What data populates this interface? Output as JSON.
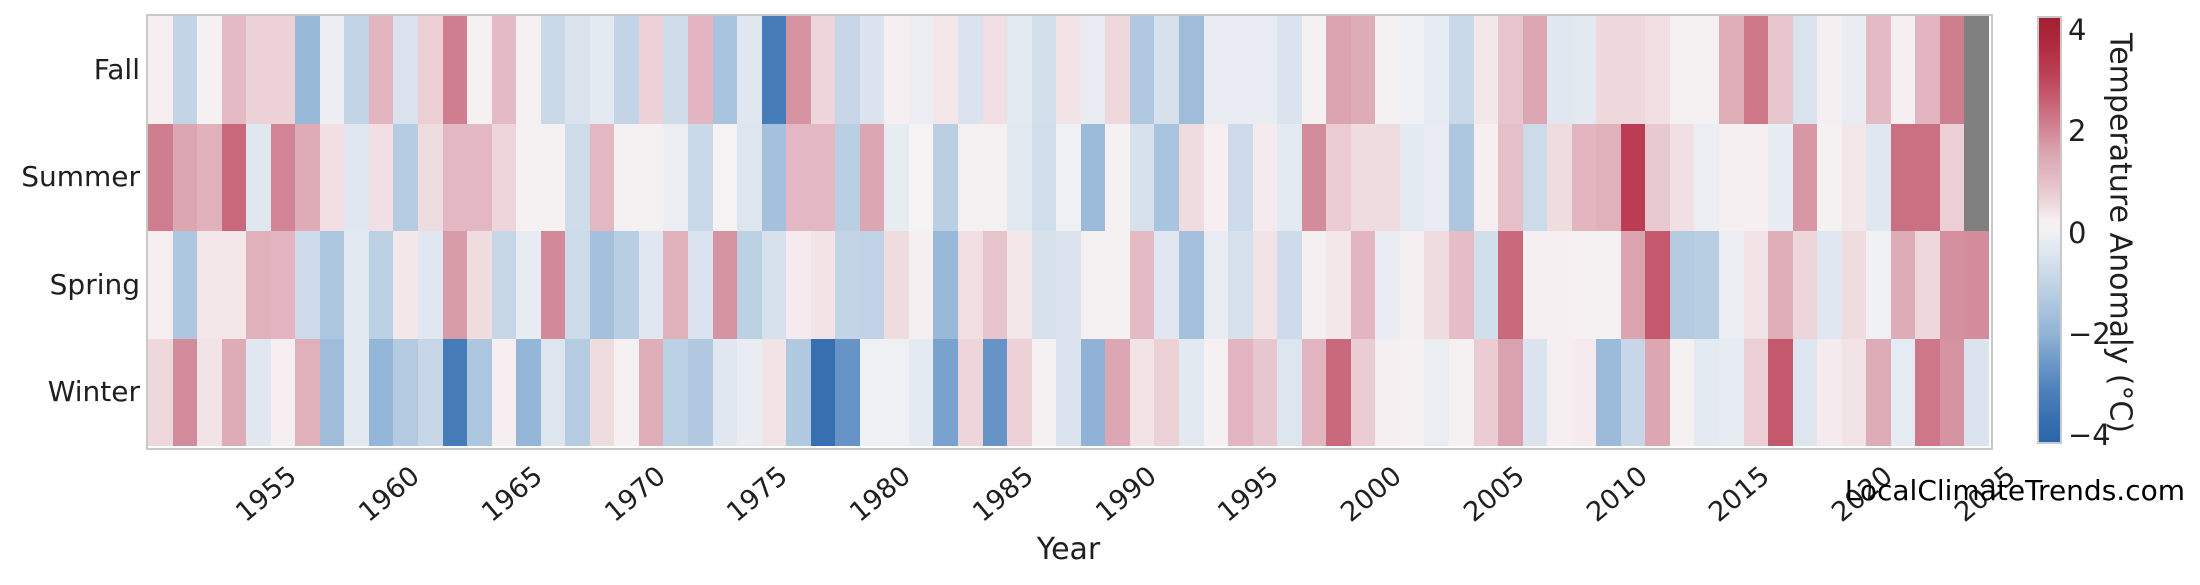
{
  "watermark": "LocalClimateTrends.com",
  "chart_data": {
    "type": "heatmap",
    "title": "",
    "xlabel": "Year",
    "ylabel": "",
    "colorbar_label": "Temperature Anomaly (°C)",
    "colorbar_ticks": [
      {
        "value": 4,
        "label": "4"
      },
      {
        "value": 2,
        "label": "2"
      },
      {
        "value": 0,
        "label": "0"
      },
      {
        "value": -2,
        "label": "−2"
      },
      {
        "value": -4,
        "label": "−4"
      }
    ],
    "vmin": -4,
    "vmax": 4,
    "year_start": 1951,
    "year_end": 2025,
    "x_ticks": [
      "1955",
      "1960",
      "1965",
      "1970",
      "1975",
      "1980",
      "1985",
      "1990",
      "1995",
      "2000",
      "2005",
      "2010",
      "2015",
      "2020",
      "2025"
    ],
    "rows": [
      "Fall",
      "Summer",
      "Spring",
      "Winter"
    ],
    "missing_color": "#808080",
    "grid": false,
    "colormap_stops": [
      [
        -4.0,
        "#2a65ab"
      ],
      [
        -3.5,
        "#3a72b1"
      ],
      [
        -3.0,
        "#4e82bc"
      ],
      [
        -2.5,
        "#6c98c9"
      ],
      [
        -2.0,
        "#8fb2d6"
      ],
      [
        -1.5,
        "#a9c4de"
      ],
      [
        -1.0,
        "#c2d4e6"
      ],
      [
        -0.5,
        "#dbe4ee"
      ],
      [
        -0.2,
        "#e9edf3"
      ],
      [
        0.0,
        "#f4f2f3"
      ],
      [
        0.2,
        "#f6eef0"
      ],
      [
        0.5,
        "#eed8dc"
      ],
      [
        1.0,
        "#e4bac4"
      ],
      [
        1.5,
        "#daa2ae"
      ],
      [
        2.0,
        "#cf7e8f"
      ],
      [
        2.5,
        "#c55b70"
      ],
      [
        3.0,
        "#bb3d53"
      ],
      [
        3.5,
        "#b02a40"
      ],
      [
        4.0,
        "#a21f30"
      ]
    ],
    "series": [
      {
        "name": "Fall",
        "values": [
          0.2,
          -1.0,
          0.05,
          1.0,
          0.6,
          0.6,
          -1.8,
          -0.15,
          -1.0,
          1.1,
          -0.55,
          0.65,
          2.0,
          0.08,
          1.0,
          0.05,
          -0.85,
          -0.5,
          -0.3,
          -1.0,
          0.6,
          -0.75,
          1.1,
          -1.5,
          -0.4,
          -3.2,
          1.7,
          0.55,
          -0.9,
          -0.5,
          0.15,
          -0.15,
          0.3,
          -0.5,
          0.4,
          -0.3,
          -0.65,
          0.35,
          -0.2,
          0.5,
          -1.35,
          -0.6,
          -1.7,
          -0.2,
          -0.2,
          -0.2,
          -0.5,
          0.1,
          1.45,
          1.3,
          0.05,
          -0.1,
          -0.25,
          -0.85,
          0.3,
          0.8,
          1.4,
          -0.4,
          -0.35,
          0.5,
          0.5,
          0.4,
          0.05,
          0.05,
          1.25,
          2.1,
          0.8,
          -0.55,
          0.15,
          -0.2,
          1.0,
          0.15,
          1.1,
          2.0,
          null
        ]
      },
      {
        "name": "Summer",
        "values": [
          2.0,
          1.4,
          1.2,
          2.3,
          -0.4,
          1.9,
          1.3,
          0.4,
          -0.4,
          0.4,
          -1.25,
          0.45,
          1.05,
          1.05,
          0.55,
          0.05,
          0.05,
          -0.75,
          1.05,
          0.05,
          0.05,
          -0.15,
          -0.85,
          0.0,
          -0.45,
          -1.6,
          1.05,
          1.05,
          -1.15,
          1.4,
          -0.25,
          0.0,
          -1.15,
          0.1,
          0.1,
          -0.35,
          -0.7,
          -0.1,
          -1.75,
          0.1,
          -0.6,
          -1.5,
          0.45,
          0.2,
          -0.8,
          0.25,
          -0.3,
          1.8,
          0.7,
          0.45,
          0.45,
          -0.3,
          -0.2,
          -1.4,
          0.2,
          0.9,
          -0.8,
          0.45,
          1.1,
          1.2,
          3.0,
          0.75,
          0.4,
          -0.15,
          0.15,
          0.15,
          -0.25,
          1.65,
          0.05,
          0.3,
          -0.4,
          2.2,
          2.2,
          0.65,
          null
        ]
      },
      {
        "name": "Spring",
        "values": [
          0.2,
          -1.4,
          0.3,
          0.3,
          1.2,
          1.1,
          -0.8,
          -1.4,
          -0.35,
          -1.1,
          0.3,
          -0.4,
          1.6,
          0.45,
          -0.9,
          -0.25,
          1.85,
          -0.8,
          -1.6,
          -1.2,
          -0.4,
          1.2,
          -0.5,
          1.7,
          -1.1,
          -0.6,
          0.25,
          0.35,
          -1.0,
          -1.05,
          0.45,
          0.15,
          -1.8,
          0.4,
          0.85,
          0.3,
          -0.6,
          -0.5,
          0.05,
          0.05,
          1.0,
          -0.4,
          -1.6,
          -0.2,
          -0.6,
          0.35,
          -0.8,
          0.15,
          0.3,
          1.1,
          -0.2,
          0.15,
          0.45,
          0.95,
          -0.7,
          2.3,
          0.15,
          0.15,
          0.1,
          0.05,
          1.45,
          2.55,
          -1.3,
          -1.2,
          -0.15,
          0.35,
          1.25,
          0.55,
          -0.4,
          0.45,
          -0.1,
          1.3,
          0.5,
          1.75,
          1.8
        ]
      },
      {
        "name": "Winter",
        "values": [
          0.5,
          1.8,
          0.35,
          1.3,
          -0.4,
          0.2,
          1.2,
          -1.7,
          -0.35,
          -1.9,
          -1.3,
          -0.9,
          -3.2,
          -1.4,
          0.2,
          -1.9,
          -0.45,
          -1.25,
          0.45,
          0.07,
          1.25,
          -1.1,
          -1.35,
          -0.4,
          -0.2,
          0.35,
          -1.35,
          -3.6,
          -2.6,
          -0.1,
          -0.1,
          -0.3,
          -2.3,
          0.55,
          -2.6,
          0.6,
          0.05,
          -0.5,
          -2.0,
          1.4,
          0.35,
          0.6,
          -0.35,
          0.05,
          1.1,
          0.8,
          -0.45,
          1.1,
          2.3,
          0.7,
          0.15,
          0.07,
          -0.18,
          0.05,
          0.7,
          1.5,
          -0.5,
          0.15,
          0.25,
          -1.75,
          -0.9,
          1.4,
          0.05,
          -0.3,
          -0.25,
          0.65,
          2.55,
          -0.45,
          0.25,
          0.35,
          1.3,
          -0.28,
          2.1,
          1.7,
          -0.5
        ]
      }
    ]
  }
}
